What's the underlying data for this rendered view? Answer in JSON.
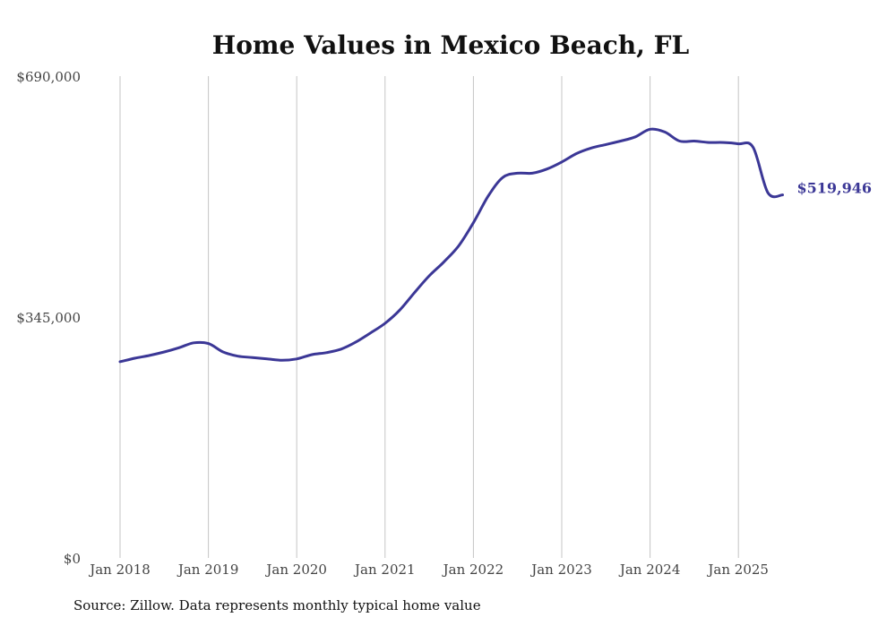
{
  "chart_data": {
    "type": "line",
    "title": "Home Values in Mexico Beach, FL",
    "xlabel": "",
    "ylabel": "",
    "ylim": [
      0,
      690000
    ],
    "y_ticks": [
      "$0",
      "$345,000",
      "$690,000"
    ],
    "y_tick_values": [
      0,
      345000,
      690000
    ],
    "x_ticks": [
      "Jan 2018",
      "Jan 2019",
      "Jan 2020",
      "Jan 2021",
      "Jan 2022",
      "Jan 2023",
      "Jan 2024",
      "Jan 2025"
    ],
    "x_tick_dates": [
      "2018-01",
      "2019-01",
      "2020-01",
      "2021-01",
      "2022-01",
      "2023-01",
      "2024-01",
      "2025-01"
    ],
    "grid": "vertical",
    "line_color": "#3b3796",
    "end_label": "$519,946",
    "series": [
      {
        "x": [
          "2018-01",
          "2018-03",
          "2018-05",
          "2018-07",
          "2018-09",
          "2018-11",
          "2019-01",
          "2019-03",
          "2019-05",
          "2019-07",
          "2019-09",
          "2019-11",
          "2020-01",
          "2020-03",
          "2020-05",
          "2020-07",
          "2020-09",
          "2020-11",
          "2021-01",
          "2021-03",
          "2021-05",
          "2021-07",
          "2021-09",
          "2021-11",
          "2022-01",
          "2022-03",
          "2022-05",
          "2022-07",
          "2022-09",
          "2022-11",
          "2023-01",
          "2023-03",
          "2023-05",
          "2023-07",
          "2023-09",
          "2023-11",
          "2024-01",
          "2024-03",
          "2024-05",
          "2024-07",
          "2024-09",
          "2024-11",
          "2025-01",
          "2025-03",
          "2025-05",
          "2025-07"
        ],
        "values": [
          281000,
          286000,
          290000,
          295000,
          301000,
          308000,
          307000,
          295000,
          289000,
          287000,
          285000,
          283000,
          285000,
          291000,
          294000,
          299000,
          309000,
          322000,
          336000,
          355000,
          380000,
          404000,
          424000,
          447000,
          480000,
          518000,
          545000,
          551000,
          551000,
          557000,
          567000,
          579000,
          587000,
          592000,
          597000,
          603000,
          614000,
          610000,
          597000,
          597000,
          595000,
          595000,
          593000,
          588000,
          523000,
          519946
        ]
      }
    ]
  },
  "source": "Source: Zillow. Data represents monthly typical home value"
}
